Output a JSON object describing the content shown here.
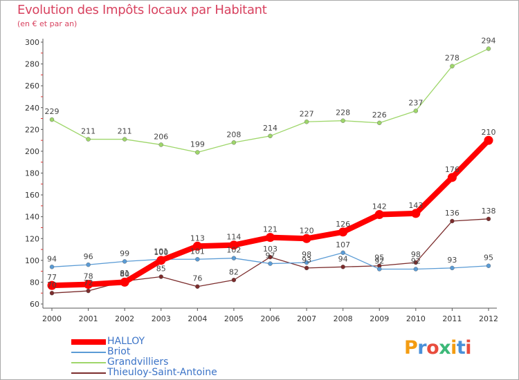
{
  "chart_data": {
    "type": "line",
    "title": "Evolution des Impôts locaux par Habitant",
    "subtitle": "(en € et par an)",
    "xlabel": "",
    "ylabel": "",
    "ylim": [
      60,
      300
    ],
    "yticks": [
      60,
      80,
      100,
      120,
      140,
      160,
      180,
      200,
      220,
      240,
      260,
      280,
      300
    ],
    "x": [
      "2000",
      "2001",
      "2002",
      "2003",
      "2004",
      "2005",
      "2006",
      "2007",
      "2008",
      "2009",
      "2010",
      "2011",
      "2012"
    ],
    "series": [
      {
        "name": "HALLOY",
        "color": "#ff0000",
        "values": [
          77,
          78,
          80,
          100,
          113,
          114,
          121,
          120,
          126,
          142,
          143,
          176,
          210
        ]
      },
      {
        "name": "Briot",
        "color": "#5a9bd5",
        "values": [
          94,
          96,
          99,
          101,
          101,
          102,
          97,
          98,
          107,
          92,
          92,
          93,
          95
        ]
      },
      {
        "name": "Grandvilliers",
        "color": "#9ed66a",
        "values": [
          229,
          211,
          211,
          206,
          199,
          208,
          214,
          227,
          228,
          226,
          237,
          278,
          294
        ]
      },
      {
        "name": "Thieuloy-Saint-Antoine",
        "color": "#7b2c2c",
        "values": [
          70,
          72,
          81,
          85,
          76,
          82,
          103,
          93,
          94,
          95,
          98,
          136,
          138
        ]
      }
    ],
    "legend_position": "bottom-left",
    "grid": false
  },
  "logo": {
    "text": "Proxiti"
  }
}
